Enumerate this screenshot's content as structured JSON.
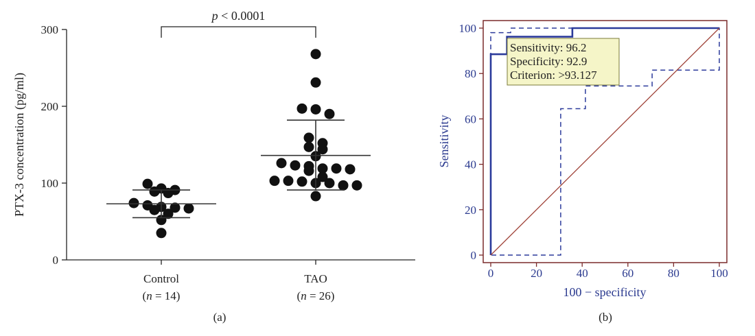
{
  "chart_data": [
    {
      "panel": "(a)",
      "type": "scatter",
      "ylabel": "PTX-3 concentration (pg/ml)",
      "ylim": [
        0,
        300
      ],
      "yticks": [
        0,
        100,
        200,
        300
      ],
      "annotation": "p < 0.0001",
      "groups": [
        {
          "name": "Control",
          "n_label": "(n = 14)",
          "mean": 73,
          "sd_low": 55,
          "sd_high": 91,
          "points": [
            89,
            93,
            91,
            99,
            87,
            74,
            67,
            71,
            65,
            68,
            60,
            52,
            35,
            69
          ]
        },
        {
          "name": "TAO",
          "n_label": "(n = 26)",
          "mean": 136,
          "sd_low": 91,
          "sd_high": 182,
          "points": [
            268,
            231,
            197,
            190,
            196,
            159,
            147,
            144,
            152,
            135,
            126,
            122,
            123,
            119,
            116,
            119,
            118,
            108,
            103,
            100,
            102,
            103,
            100,
            97,
            97,
            83
          ]
        }
      ]
    },
    {
      "panel": "(b)",
      "type": "line",
      "xlabel": "100 − specificity",
      "ylabel": "Sensitivity",
      "xlim": [
        0,
        100
      ],
      "ylim": [
        0,
        100
      ],
      "xticks": [
        0,
        20,
        40,
        60,
        80,
        100
      ],
      "yticks": [
        0,
        20,
        40,
        60,
        80,
        100
      ],
      "series": [
        {
          "style": "solid",
          "color": "#2b3a9b",
          "points": [
            [
              0,
              0
            ],
            [
              0,
              88.5
            ],
            [
              7.1,
              88.5
            ],
            [
              7.1,
              96.2
            ],
            [
              35.7,
              96.2
            ],
            [
              35.7,
              100
            ],
            [
              100,
              100
            ]
          ]
        },
        {
          "style": "dashed",
          "color": "#2b3a9b",
          "points": [
            [
              0,
              0
            ],
            [
              0,
              98
            ],
            [
              8.7,
              98
            ],
            [
              8.7,
              100
            ],
            [
              60,
              100
            ],
            [
              60,
              100
            ],
            [
              100,
              100
            ],
            [
              100,
              81.5
            ],
            [
              70.6,
              81.5
            ],
            [
              70.6,
              74.5
            ],
            [
              41.4,
              74.5
            ],
            [
              41.4,
              64.5
            ],
            [
              30.6,
              64.5
            ],
            [
              30.6,
              0
            ],
            [
              0,
              0
            ]
          ]
        },
        {
          "style": "solid",
          "color": "#a0443a",
          "points": [
            [
              0,
              0
            ],
            [
              100,
              100
            ]
          ]
        }
      ],
      "callout": {
        "lines": [
          "Sensitivity: 96.2",
          "Specificity: 92.9",
          "Criterion: >93.127"
        ],
        "background": "#f5f5c8"
      }
    }
  ]
}
